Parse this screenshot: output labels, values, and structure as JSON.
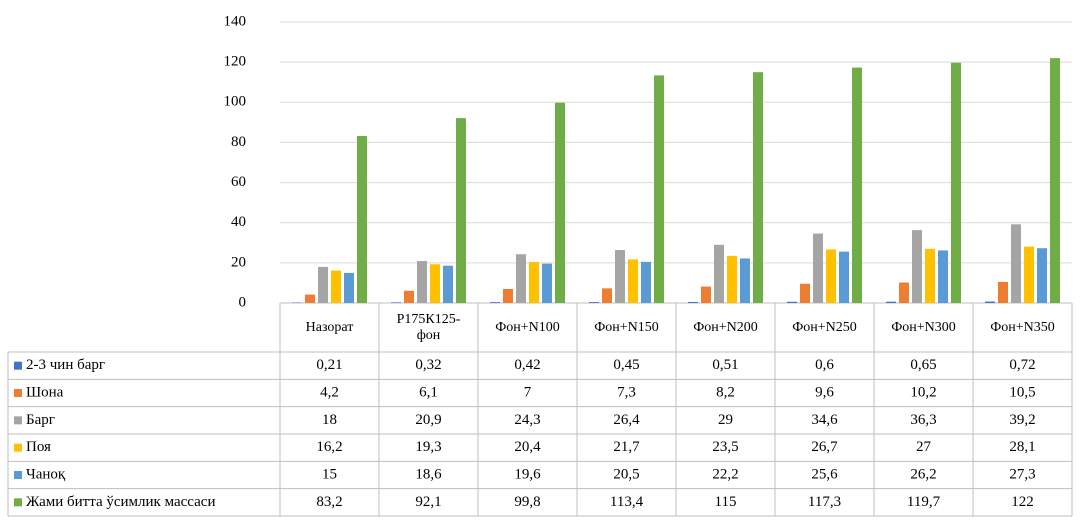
{
  "chart_data": {
    "type": "bar",
    "categories": [
      "Назорат",
      "Р175К125-фон",
      "Фон+N100",
      "Фон+N150",
      "Фон+N200",
      "Фон+N250",
      "Фон+N300",
      "Фон+N350"
    ],
    "series": [
      {
        "name": "2-3 чин барг",
        "color": "#4472c4",
        "values": [
          0.21,
          0.32,
          0.42,
          0.45,
          0.51,
          0.6,
          0.65,
          0.72
        ],
        "value_labels": [
          "0,21",
          "0,32",
          "0,42",
          "0,45",
          "0,51",
          "0,6",
          "0,65",
          "0,72"
        ]
      },
      {
        "name": "Шона",
        "color": "#ed7d31",
        "values": [
          4.2,
          6.1,
          7,
          7.3,
          8.2,
          9.6,
          10.2,
          10.5
        ],
        "value_labels": [
          "4,2",
          "6,1",
          "7",
          "7,3",
          "8,2",
          "9,6",
          "10,2",
          "10,5"
        ]
      },
      {
        "name": "Барг",
        "color": "#a5a5a5",
        "values": [
          18,
          20.9,
          24.3,
          26.4,
          29,
          34.6,
          36.3,
          39.2
        ],
        "value_labels": [
          "18",
          "20,9",
          "24,3",
          "26,4",
          "29",
          "34,6",
          "36,3",
          "39,2"
        ]
      },
      {
        "name": "Поя",
        "color": "#ffc000",
        "values": [
          16.2,
          19.3,
          20.4,
          21.7,
          23.5,
          26.7,
          27,
          28.1
        ],
        "value_labels": [
          "16,2",
          "19,3",
          "20,4",
          "21,7",
          "23,5",
          "26,7",
          "27",
          "28,1"
        ]
      },
      {
        "name": "Чаноқ",
        "color": "#5b9bd5",
        "values": [
          15,
          18.6,
          19.6,
          20.5,
          22.2,
          25.6,
          26.2,
          27.3
        ],
        "value_labels": [
          "15",
          "18,6",
          "19,6",
          "20,5",
          "22,2",
          "25,6",
          "26,2",
          "27,3"
        ]
      },
      {
        "name": "Жами битта ўсимлик массаси",
        "color": "#70ad47",
        "values": [
          83.2,
          92.1,
          99.8,
          113.4,
          115,
          117.3,
          119.7,
          122
        ],
        "value_labels": [
          "83,2",
          "92,1",
          "99,8",
          "113,4",
          "115",
          "117,3",
          "119,7",
          "122"
        ]
      }
    ],
    "ylim": [
      0,
      140
    ],
    "yticks": [
      0,
      20,
      40,
      60,
      80,
      100,
      120,
      140
    ],
    "grid": true
  }
}
